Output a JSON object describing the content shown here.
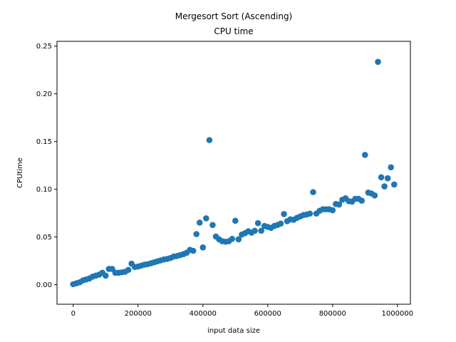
{
  "chart_data": {
    "type": "scatter",
    "title": "Mergesort Sort (Ascending)",
    "subtitle": "CPU time",
    "xlabel": "input data size",
    "ylabel": "CPUtime",
    "xlim": [
      -50000,
      1040000
    ],
    "ylim": [
      -0.0205,
      0.255
    ],
    "xticks": [
      0,
      200000,
      400000,
      600000,
      800000,
      1000000
    ],
    "xtick_labels": [
      "0",
      "200000",
      "400000",
      "600000",
      "800000",
      "1000000"
    ],
    "yticks": [
      0.0,
      0.05,
      0.1,
      0.15,
      0.2,
      0.25
    ],
    "ytick_labels": [
      "0.00",
      "0.05",
      "0.10",
      "0.15",
      "0.20",
      "0.25"
    ],
    "grid": false,
    "marker_color": "#1f77b4",
    "points": [
      [
        0,
        0.0005
      ],
      [
        10000,
        0.0015
      ],
      [
        20000,
        0.0025
      ],
      [
        30000,
        0.0045
      ],
      [
        40000,
        0.0055
      ],
      [
        50000,
        0.0065
      ],
      [
        60000,
        0.0085
      ],
      [
        70000,
        0.0095
      ],
      [
        80000,
        0.0105
      ],
      [
        90000,
        0.0125
      ],
      [
        100000,
        0.0095
      ],
      [
        110000,
        0.0165
      ],
      [
        120000,
        0.0165
      ],
      [
        130000,
        0.0125
      ],
      [
        140000,
        0.0125
      ],
      [
        150000,
        0.013
      ],
      [
        160000,
        0.0135
      ],
      [
        170000,
        0.0155
      ],
      [
        180000,
        0.022
      ],
      [
        190000,
        0.0185
      ],
      [
        200000,
        0.019
      ],
      [
        210000,
        0.02
      ],
      [
        220000,
        0.021
      ],
      [
        230000,
        0.0215
      ],
      [
        240000,
        0.0225
      ],
      [
        250000,
        0.0235
      ],
      [
        260000,
        0.0245
      ],
      [
        270000,
        0.0255
      ],
      [
        280000,
        0.0265
      ],
      [
        290000,
        0.027
      ],
      [
        300000,
        0.028
      ],
      [
        310000,
        0.0295
      ],
      [
        320000,
        0.03
      ],
      [
        330000,
        0.031
      ],
      [
        340000,
        0.032
      ],
      [
        350000,
        0.0335
      ],
      [
        360000,
        0.0365
      ],
      [
        370000,
        0.0355
      ],
      [
        380000,
        0.053
      ],
      [
        390000,
        0.065
      ],
      [
        400000,
        0.039
      ],
      [
        410000,
        0.0695
      ],
      [
        420000,
        0.1515
      ],
      [
        430000,
        0.0625
      ],
      [
        440000,
        0.0505
      ],
      [
        450000,
        0.0475
      ],
      [
        460000,
        0.0455
      ],
      [
        470000,
        0.045
      ],
      [
        480000,
        0.0455
      ],
      [
        490000,
        0.048
      ],
      [
        500000,
        0.067
      ],
      [
        510000,
        0.0475
      ],
      [
        520000,
        0.0525
      ],
      [
        530000,
        0.054
      ],
      [
        540000,
        0.056
      ],
      [
        550000,
        0.0545
      ],
      [
        560000,
        0.0565
      ],
      [
        570000,
        0.0645
      ],
      [
        580000,
        0.0565
      ],
      [
        590000,
        0.0615
      ],
      [
        600000,
        0.0605
      ],
      [
        610000,
        0.0595
      ],
      [
        620000,
        0.0615
      ],
      [
        630000,
        0.0625
      ],
      [
        640000,
        0.064
      ],
      [
        650000,
        0.074
      ],
      [
        660000,
        0.0665
      ],
      [
        670000,
        0.0685
      ],
      [
        680000,
        0.068
      ],
      [
        690000,
        0.07
      ],
      [
        700000,
        0.0715
      ],
      [
        710000,
        0.073
      ],
      [
        720000,
        0.0735
      ],
      [
        730000,
        0.0745
      ],
      [
        740000,
        0.097
      ],
      [
        750000,
        0.0745
      ],
      [
        760000,
        0.0775
      ],
      [
        770000,
        0.079
      ],
      [
        780000,
        0.079
      ],
      [
        790000,
        0.079
      ],
      [
        800000,
        0.078
      ],
      [
        810000,
        0.0845
      ],
      [
        820000,
        0.084
      ],
      [
        830000,
        0.089
      ],
      [
        840000,
        0.0905
      ],
      [
        850000,
        0.0875
      ],
      [
        860000,
        0.087
      ],
      [
        870000,
        0.09
      ],
      [
        880000,
        0.09
      ],
      [
        890000,
        0.088
      ],
      [
        900000,
        0.136
      ],
      [
        910000,
        0.0965
      ],
      [
        920000,
        0.0955
      ],
      [
        930000,
        0.0935
      ],
      [
        940000,
        0.2335
      ],
      [
        950000,
        0.1125
      ],
      [
        960000,
        0.103
      ],
      [
        970000,
        0.1115
      ],
      [
        980000,
        0.123
      ],
      [
        990000,
        0.105
      ]
    ]
  }
}
